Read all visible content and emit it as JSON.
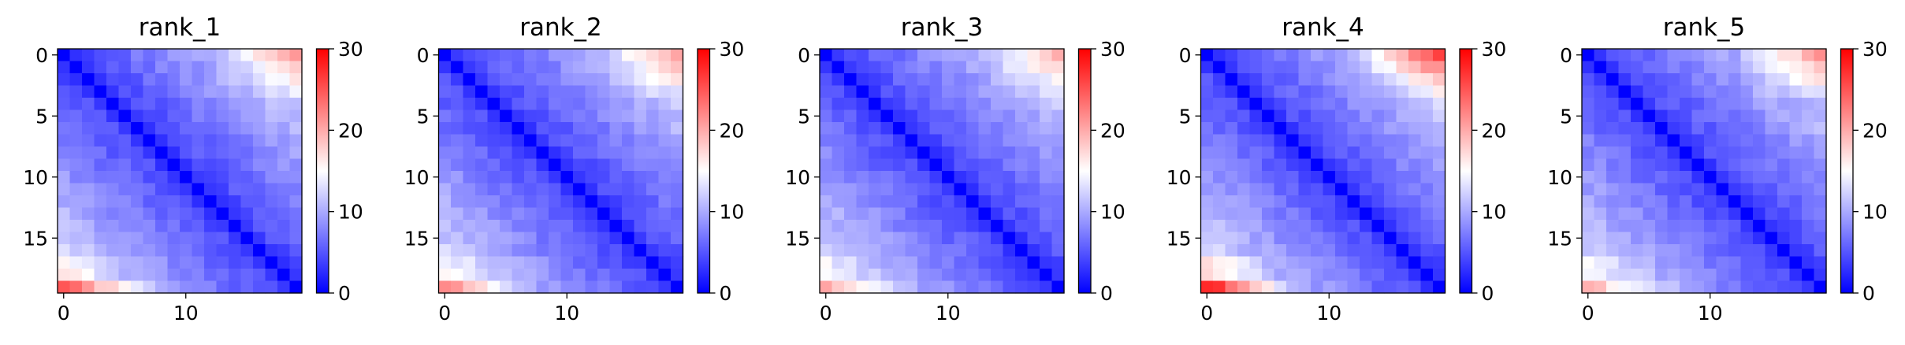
{
  "chart_data": [
    {
      "type": "heatmap",
      "title": "rank_1",
      "n": 20,
      "x_ticks": [
        0,
        10
      ],
      "y_ticks": [
        0,
        5,
        10,
        15
      ],
      "colorbar": {
        "min": 0,
        "max": 30,
        "ticks": [
          0,
          10,
          20,
          30
        ],
        "colors": [
          "#0000ff",
          "#ffffff",
          "#ff0000"
        ]
      },
      "row_near_end": 15.4,
      "row_near_start": 2.0,
      "bottom_row_boost": 8.5,
      "near_diag": 2.5,
      "far_scale": 1.0
    },
    {
      "type": "heatmap",
      "title": "rank_2",
      "n": 20,
      "x_ticks": [
        0,
        10
      ],
      "y_ticks": [
        0,
        5,
        10,
        15
      ],
      "colorbar": {
        "min": 0,
        "max": 30,
        "ticks": [
          0,
          10,
          20,
          30
        ],
        "colors": [
          "#0000ff",
          "#ffffff",
          "#ff0000"
        ]
      },
      "row_near_end": 15.5,
      "row_near_start": 2.0,
      "bottom_row_boost": 6.0,
      "near_diag": 2.5,
      "far_scale": 1.0
    },
    {
      "type": "heatmap",
      "title": "rank_3",
      "n": 20,
      "x_ticks": [
        0,
        10
      ],
      "y_ticks": [
        0,
        5,
        10,
        15
      ],
      "colorbar": {
        "min": 0,
        "max": 30,
        "ticks": [
          0,
          10,
          20,
          30
        ],
        "colors": [
          "#0000ff",
          "#ffffff",
          "#ff0000"
        ]
      },
      "row_near_end": 14.0,
      "row_near_start": 2.0,
      "bottom_row_boost": 4.5,
      "near_diag": 2.5,
      "far_scale": 1.0
    },
    {
      "type": "heatmap",
      "title": "rank_4",
      "n": 20,
      "x_ticks": [
        0,
        10
      ],
      "y_ticks": [
        0,
        5,
        10,
        15
      ],
      "colorbar": {
        "min": 0,
        "max": 30,
        "ticks": [
          0,
          10,
          20,
          30
        ],
        "colors": [
          "#0000ff",
          "#ffffff",
          "#ff0000"
        ]
      },
      "row_near_end": 20.5,
      "row_near_start": 2.0,
      "bottom_row_boost": 10.5,
      "near_diag": 2.5,
      "far_scale": 1.05
    },
    {
      "type": "heatmap",
      "title": "rank_5",
      "n": 20,
      "x_ticks": [
        0,
        10
      ],
      "y_ticks": [
        0,
        5,
        10,
        15
      ],
      "colorbar": {
        "min": 0,
        "max": 30,
        "ticks": [
          0,
          10,
          20,
          30
        ],
        "colors": [
          "#0000ff",
          "#ffffff",
          "#ff0000"
        ]
      },
      "row_near_end": 16.0,
      "row_near_start": 2.0,
      "bottom_row_boost": 4.0,
      "near_diag": 2.5,
      "far_scale": 1.0
    }
  ]
}
